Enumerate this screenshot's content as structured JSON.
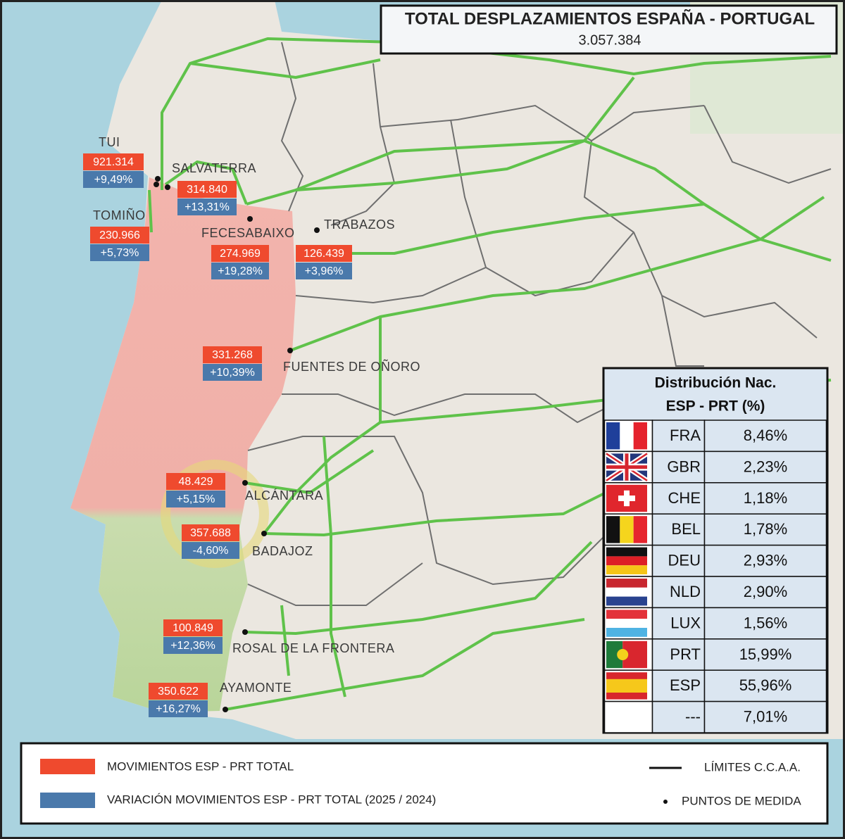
{
  "header": {
    "title": "TOTAL DESPLAZAMIENTOS ESPAÑA - PORTUGAL",
    "total": "3.057.384"
  },
  "points": [
    {
      "name": "TUI",
      "total": "921.314",
      "variation": "+9,49%"
    },
    {
      "name": "SALVATERRA",
      "total": "314.840",
      "variation": "+13,31%"
    },
    {
      "name": "TOMIÑO",
      "total": "230.966",
      "variation": "+5,73%"
    },
    {
      "name": "FECESABAIXO",
      "total": "274.969",
      "variation": "+19,28%"
    },
    {
      "name": "TRABAZOS",
      "total": "126.439",
      "variation": "+3,96%"
    },
    {
      "name": "FUENTES DE OÑORO",
      "total": "331.268",
      "variation": "+10,39%"
    },
    {
      "name": "ALCÁNTARA",
      "total": "48.429",
      "variation": "+5,15%"
    },
    {
      "name": "BADAJOZ",
      "total": "357.688",
      "variation": "-4,60%"
    },
    {
      "name": "ROSAL DE LA FRONTERA",
      "total": "100.849",
      "variation": "+12,36%"
    },
    {
      "name": "AYAMONTE",
      "total": "350.622",
      "variation": "+16,27%"
    }
  ],
  "distribution": {
    "title": [
      "Distribución Nac.",
      "ESP - PRT (%)"
    ],
    "rows": [
      {
        "country": "FRA",
        "share": "8,46%"
      },
      {
        "country": "GBR",
        "share": "2,23%"
      },
      {
        "country": "CHE",
        "share": "1,18%"
      },
      {
        "country": "BEL",
        "share": "1,78%"
      },
      {
        "country": "DEU",
        "share": "2,93%"
      },
      {
        "country": "NLD",
        "share": "2,90%"
      },
      {
        "country": "LUX",
        "share": "1,56%"
      },
      {
        "country": "PRT",
        "share": "15,99%"
      },
      {
        "country": "ESP",
        "share": "55,96%"
      },
      {
        "country": "---",
        "share": "7,01%"
      }
    ]
  },
  "legend": {
    "total": "MOVIMIENTOS ESP - PRT TOTAL",
    "variation": "VARIACIÓN MOVIMIENTOS ESP - PRT TOTAL (2025 / 2024)",
    "borders": "LÍMITES C.C.A.A.",
    "points": "PUNTOS DE MEDIDA"
  }
}
